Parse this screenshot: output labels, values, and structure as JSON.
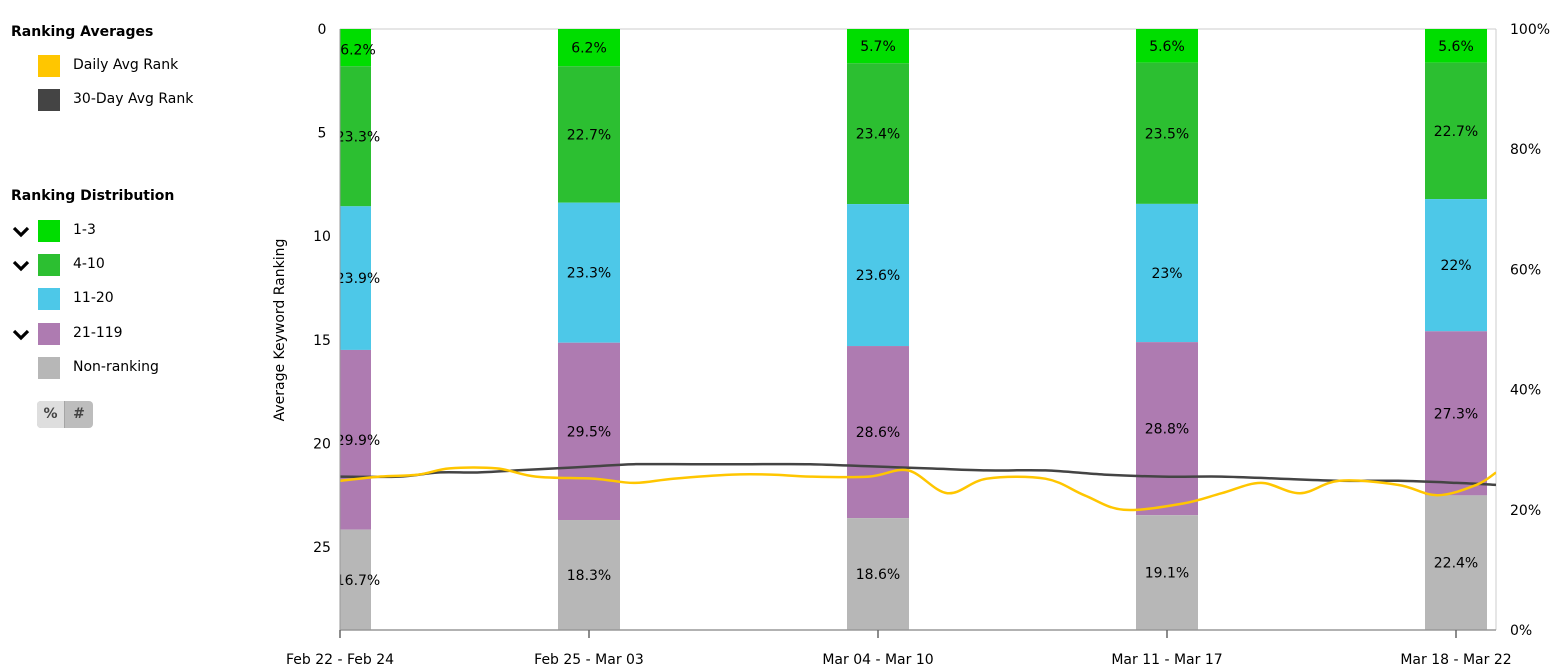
{
  "legend": {
    "averages_heading": "Ranking Averages",
    "averages": [
      {
        "label": "Daily Avg Rank",
        "color": "#ffc600"
      },
      {
        "label": "30-Day Avg Rank",
        "color": "#444444"
      }
    ],
    "distribution_heading": "Ranking Distribution",
    "distribution": [
      {
        "label": "1-3",
        "color": "#00dd00",
        "chevron": true
      },
      {
        "label": "4-10",
        "color": "#2cbf31",
        "chevron": true
      },
      {
        "label": "11-20",
        "color": "#4dc8e8",
        "chevron": false
      },
      {
        "label": "21-119",
        "color": "#ae7bb1",
        "chevron": true
      },
      {
        "label": "Non-ranking",
        "color": "#b7b7b7",
        "chevron": false
      }
    ],
    "toggle": {
      "percent_label": "%",
      "count_label": "#",
      "selected": "percent"
    }
  },
  "chart_data": {
    "type": "bar",
    "stacked": true,
    "ylabel": "Average Keyword Ranking",
    "y_left": {
      "range": [
        0,
        29
      ],
      "ticks": [
        0,
        5,
        10,
        15,
        20,
        25
      ],
      "inverted": true
    },
    "y_right": {
      "range": [
        0,
        100
      ],
      "ticks": [
        "0%",
        "20%",
        "40%",
        "60%",
        "80%",
        "100%"
      ]
    },
    "categories": [
      "Feb 22 - Feb 24",
      "Feb 25 - Mar 03",
      "Mar 04 - Mar 10",
      "Mar 11 - Mar 17",
      "Mar 18 - Mar 22"
    ],
    "series": [
      {
        "name": "1-3",
        "color": "#00dd00",
        "values": [
          6.2,
          6.2,
          5.7,
          5.6,
          5.6
        ],
        "labels": [
          "6.2%",
          "6.2%",
          "5.7%",
          "5.6%",
          "5.6%"
        ]
      },
      {
        "name": "4-10",
        "color": "#2cbf31",
        "values": [
          23.3,
          22.7,
          23.4,
          23.5,
          22.7
        ],
        "labels": [
          "23.3%",
          "22.7%",
          "23.4%",
          "23.5%",
          "22.7%"
        ]
      },
      {
        "name": "11-20",
        "color": "#4dc8e8",
        "values": [
          23.9,
          23.3,
          23.6,
          23,
          22
        ],
        "labels": [
          "23.9%",
          "23.3%",
          "23.6%",
          "23%",
          "22%"
        ]
      },
      {
        "name": "21-119",
        "color": "#ae7bb1",
        "values": [
          29.9,
          29.5,
          28.6,
          28.8,
          27.3
        ],
        "labels": [
          "29.9%",
          "29.5%",
          "28.6%",
          "28.8%",
          "27.3%"
        ]
      },
      {
        "name": "Non-ranking",
        "color": "#b7b7b7",
        "values": [
          16.7,
          18.3,
          18.6,
          19.1,
          22.4
        ],
        "labels": [
          "16.7%",
          "18.3%",
          "18.6%",
          "19.1%",
          "22.4%"
        ]
      }
    ],
    "lines": [
      {
        "name": "30-Day Avg Rank",
        "color": "#444444",
        "points": [
          [
            0,
            21.6
          ],
          [
            1.5,
            21.6
          ],
          [
            2.5,
            21.4
          ],
          [
            3.5,
            21.4
          ],
          [
            4.5,
            21.3
          ],
          [
            5.5,
            21.2
          ],
          [
            6.5,
            21.1
          ],
          [
            7.5,
            21.0
          ],
          [
            9,
            21.0
          ],
          [
            10.5,
            21.0
          ],
          [
            12,
            21.0
          ],
          [
            13.5,
            21.1
          ],
          [
            15,
            21.2
          ],
          [
            16.5,
            21.3
          ],
          [
            18,
            21.3
          ],
          [
            19.5,
            21.5
          ],
          [
            21,
            21.6
          ],
          [
            22.5,
            21.6
          ],
          [
            24,
            21.7
          ],
          [
            25.5,
            21.8
          ],
          [
            27,
            21.8
          ],
          [
            28.5,
            21.9
          ],
          [
            29.5,
            22.0
          ]
        ]
      },
      {
        "name": "Daily Avg Rank",
        "color": "#ffc600",
        "points": [
          [
            0,
            21.8
          ],
          [
            1,
            21.6
          ],
          [
            2,
            21.5
          ],
          [
            2.8,
            21.2
          ],
          [
            4,
            21.2
          ],
          [
            5,
            21.6
          ],
          [
            6.5,
            21.7
          ],
          [
            7.5,
            21.9
          ],
          [
            8.5,
            21.7
          ],
          [
            10,
            21.5
          ],
          [
            11,
            21.5
          ],
          [
            12,
            21.6
          ],
          [
            13.5,
            21.6
          ],
          [
            14.5,
            21.3
          ],
          [
            15.5,
            22.4
          ],
          [
            16.5,
            21.7
          ],
          [
            18,
            21.7
          ],
          [
            19,
            22.5
          ],
          [
            20,
            23.2
          ],
          [
            21.5,
            22.9
          ],
          [
            22.5,
            22.4
          ],
          [
            23.5,
            21.9
          ],
          [
            24.5,
            22.4
          ],
          [
            25.5,
            21.8
          ],
          [
            27,
            22.0
          ],
          [
            28,
            22.5
          ],
          [
            29,
            22.0
          ],
          [
            29.5,
            21.4
          ]
        ]
      }
    ]
  }
}
